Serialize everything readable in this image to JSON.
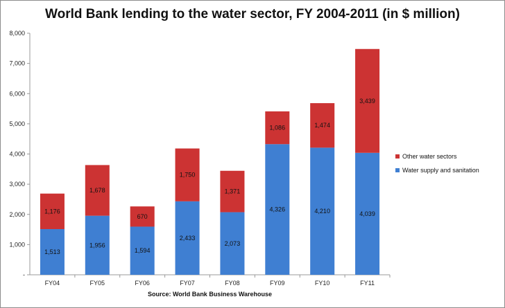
{
  "chart_data": {
    "type": "bar",
    "stacked": true,
    "title": "World Bank lending to the water sector, FY 2004-2011 (in $ million)",
    "source": "Source: World Bank Business Warehouse",
    "categories": [
      "FY04",
      "FY05",
      "FY06",
      "FY07",
      "FY08",
      "FY09",
      "FY10",
      "FY11"
    ],
    "series": [
      {
        "name": "Water supply and sanitation",
        "color": "#3f7fd2",
        "values": [
          1513,
          1956,
          1594,
          2433,
          2073,
          4326,
          4210,
          4039
        ]
      },
      {
        "name": "Other water sectors",
        "color": "#cc3333",
        "values": [
          1176,
          1678,
          670,
          1750,
          1371,
          1086,
          1474,
          3439
        ]
      }
    ],
    "value_labels": [
      [
        "1,513",
        "1,956",
        "1,594",
        "2,433",
        "2,073",
        "4,326",
        "4,210",
        "4,039"
      ],
      [
        "1,176",
        "1,678",
        "670",
        "1,750",
        "1,371",
        "1,086",
        "1,474",
        "3,439"
      ]
    ],
    "y_ticks": [
      0,
      1000,
      2000,
      3000,
      4000,
      5000,
      6000,
      7000,
      8000
    ],
    "y_tick_labels": [
      "-",
      "1,000",
      "2,000",
      "3,000",
      "4,000",
      "5,000",
      "6,000",
      "7,000",
      "8,000"
    ],
    "ylim": [
      0,
      8000
    ],
    "legend_position": "right",
    "grid": false
  }
}
